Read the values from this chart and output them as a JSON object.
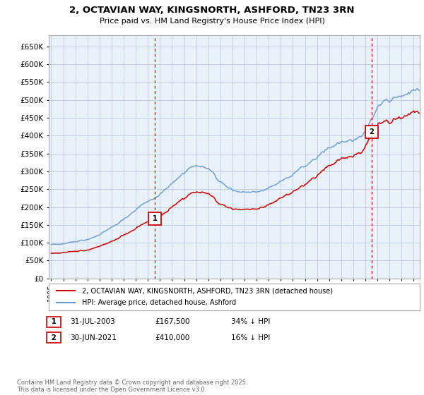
{
  "title": "2, OCTAVIAN WAY, KINGSNORTH, ASHFORD, TN23 3RN",
  "subtitle": "Price paid vs. HM Land Registry's House Price Index (HPI)",
  "ytick_values": [
    0,
    50000,
    100000,
    150000,
    200000,
    250000,
    300000,
    350000,
    400000,
    450000,
    500000,
    550000,
    600000,
    650000
  ],
  "ylim": [
    0,
    680000
  ],
  "xlim_start": 1994.8,
  "xlim_end": 2025.5,
  "red_color": "#cc0000",
  "blue_color": "#6699cc",
  "chart_bg": "#e8f0f8",
  "marker1_x": 2003.58,
  "marker1_y": 167500,
  "marker2_x": 2021.5,
  "marker2_y": 410000,
  "vline1_x": 2003.58,
  "vline2_x": 2021.5,
  "legend_line1": "2, OCTAVIAN WAY, KINGSNORTH, ASHFORD, TN23 3RN (detached house)",
  "legend_line2": "HPI: Average price, detached house, Ashford",
  "annotation1_date": "31-JUL-2003",
  "annotation1_price": "£167,500",
  "annotation1_hpi": "34% ↓ HPI",
  "annotation2_date": "30-JUN-2021",
  "annotation2_price": "£410,000",
  "annotation2_hpi": "16% ↓ HPI",
  "footer": "Contains HM Land Registry data © Crown copyright and database right 2025.\nThis data is licensed under the Open Government Licence v3.0.",
  "background_color": "#ffffff",
  "grid_color": "#bbccdd"
}
